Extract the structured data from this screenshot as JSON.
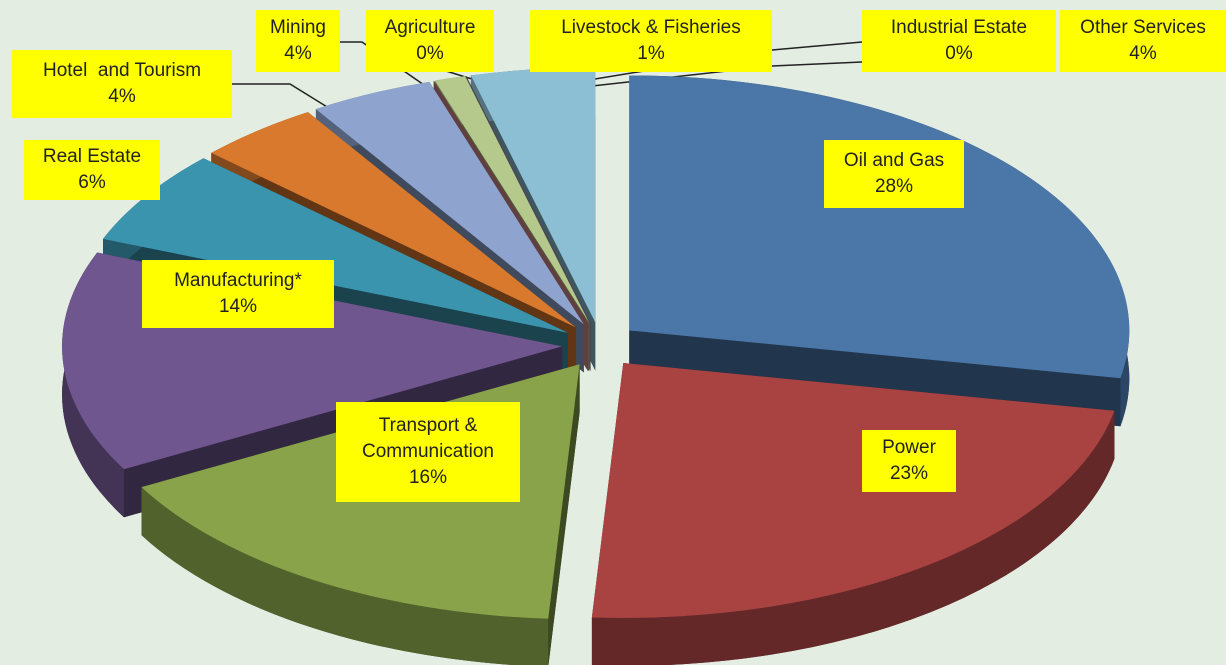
{
  "chart_data": {
    "type": "pie",
    "categories": [
      "Oil and Gas",
      "Power",
      "Transport & Communication",
      "Manufacturing*",
      "Real Estate",
      "Hotel  and Tourism",
      "Mining",
      "Agriculture",
      "Livestock & Fisheries",
      "Industrial Estate",
      "Other Services"
    ],
    "values": [
      28,
      23,
      16,
      14,
      6,
      4,
      4,
      0,
      1,
      0,
      4
    ],
    "value_labels": [
      "28%",
      "23%",
      "16%",
      "14%",
      "6%",
      "4%",
      "4%",
      "0%",
      "1%",
      "0%",
      "4%"
    ],
    "colors": [
      "#4a76a8",
      "#a84342",
      "#88a34a",
      "#6f568f",
      "#3b94ad",
      "#d9792e",
      "#8ea4cf",
      "#d58b8a",
      "#b5c98c",
      "#a496bd",
      "#8cbfd4"
    ]
  }
}
